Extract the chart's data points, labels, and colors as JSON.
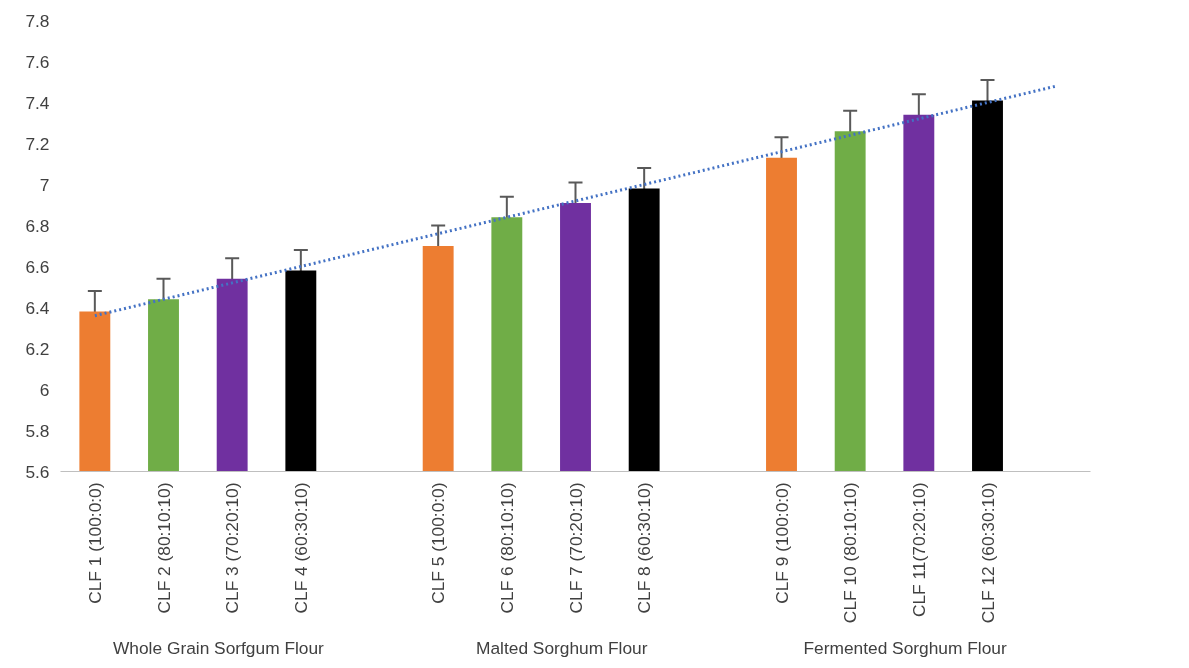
{
  "chart_data": {
    "type": "bar",
    "categories": [
      "CLF 1 (100:0:0)",
      "CLF 2 (80:10:10)",
      "CLF 3 (70:20:10)",
      "CLF 4 (60:30:10)",
      null,
      "CLF 5 (100:0:0)",
      "CLF 6 (80:10:10)",
      "CLF 7 (70:20:10)",
      "CLF 8 (60:30:10)",
      null,
      "CLF 9 (100:0:0)",
      "CLF 10 (80:10:10)",
      "CLF 11(70:20:10)",
      "CLF 12 (60:30:10)",
      null
    ],
    "series": [
      {
        "colors": [
          "#ed7d31",
          "#70ad47",
          "#7030a0",
          "#000000",
          null,
          "#ed7d31",
          "#70ad47",
          "#7030a0",
          "#000000",
          null,
          "#ed7d31",
          "#70ad47",
          "#7030a0",
          "#000000",
          null
        ],
        "values": [
          6.38,
          6.44,
          6.54,
          6.58,
          null,
          6.7,
          6.84,
          6.91,
          6.98,
          null,
          7.13,
          7.26,
          7.34,
          7.41,
          null
        ],
        "errors": [
          0.1,
          0.1,
          0.1,
          0.1,
          null,
          0.1,
          0.1,
          0.1,
          0.1,
          null,
          0.1,
          0.1,
          0.1,
          0.1,
          null
        ]
      },
      {
        "type": "line",
        "color": "#4472c4",
        "line_style": "dotted",
        "values": [
          6.36,
          6.44,
          6.52,
          6.6,
          6.68,
          6.76,
          6.84,
          6.92,
          7.0,
          7.08,
          7.16,
          7.24,
          7.32,
          7.4,
          7.48
        ]
      }
    ],
    "annotations": [
      "Whole Grain Sorfgum Flour",
      "Malted Sorghum Flour",
      "Fermented Sorghum Flour"
    ],
    "ylim": [
      5.6,
      7.8
    ],
    "yticks": [
      5.6,
      5.8,
      {
        "value": 6,
        "label": "6"
      },
      6.2,
      6.4,
      6.6,
      6.8,
      {
        "value": 7,
        "label": "7"
      },
      7.2,
      7.4,
      7.6,
      7.8
    ],
    "grid": false
  }
}
